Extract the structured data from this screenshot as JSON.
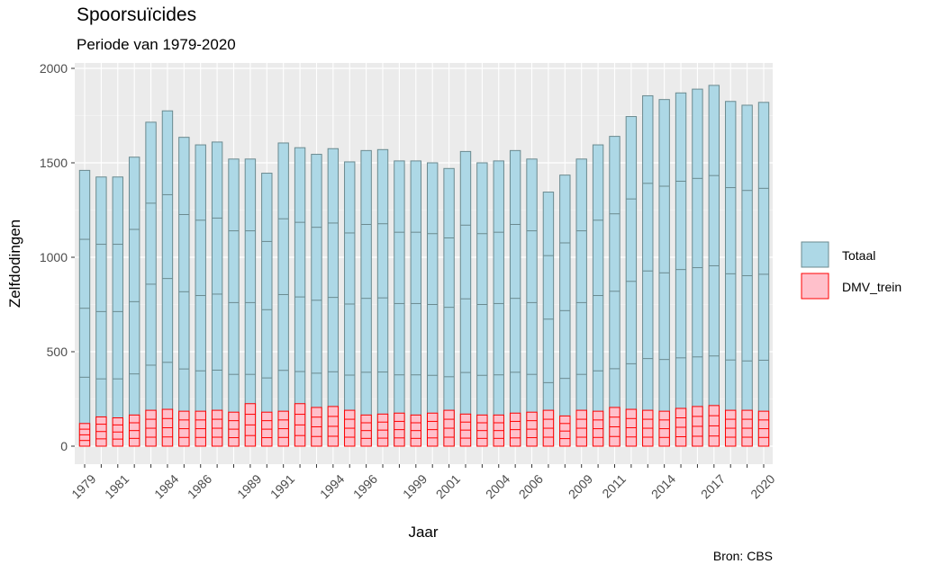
{
  "chart_data": {
    "type": "bar",
    "title": "Spoorsuïcides",
    "subtitle": "Periode van 1979-2020",
    "xlabel": "Jaar",
    "ylabel": "Zelfdodingen",
    "caption": "Bron: CBS",
    "ylim": [
      0,
      2000
    ],
    "yticks": [
      0,
      500,
      1000,
      1500,
      2000
    ],
    "xtick_labels": [
      "1979",
      "1981",
      "1984",
      "1986",
      "1989",
      "1991",
      "1994",
      "1996",
      "1999",
      "2001",
      "2004",
      "2006",
      "2009",
      "2011",
      "2014",
      "2017",
      "2020"
    ],
    "grid": true,
    "legend_position": "right",
    "x": [
      1979,
      1980,
      1981,
      1982,
      1983,
      1984,
      1985,
      1986,
      1987,
      1988,
      1989,
      1990,
      1991,
      1992,
      1993,
      1994,
      1995,
      1996,
      1997,
      1998,
      1999,
      2000,
      2001,
      2002,
      2003,
      2004,
      2005,
      2006,
      2007,
      2008,
      2009,
      2010,
      2011,
      2012,
      2013,
      2014,
      2015,
      2016,
      2017,
      2018,
      2019,
      2020
    ],
    "series": [
      {
        "name": "Totaal",
        "fill": "#ADD8E6",
        "stroke": "#6B8A8F",
        "values": [
          1460,
          1425,
          1425,
          1530,
          1715,
          1775,
          1635,
          1595,
          1610,
          1520,
          1520,
          1445,
          1605,
          1580,
          1545,
          1575,
          1505,
          1565,
          1570,
          1510,
          1510,
          1500,
          1470,
          1560,
          1500,
          1510,
          1565,
          1520,
          1345,
          1435,
          1520,
          1595,
          1640,
          1745,
          1855,
          1835,
          1870,
          1890,
          1910,
          1825,
          1805,
          1820
        ]
      },
      {
        "name": "DMV_trein",
        "fill": "#FFC0CB",
        "stroke": "#FF0000",
        "values": [
          120,
          155,
          150,
          165,
          190,
          195,
          185,
          185,
          190,
          180,
          225,
          180,
          185,
          225,
          205,
          210,
          190,
          165,
          170,
          175,
          165,
          175,
          190,
          170,
          165,
          165,
          175,
          180,
          190,
          160,
          190,
          185,
          205,
          195,
          190,
          185,
          200,
          210,
          215,
          190,
          190,
          185
        ]
      }
    ]
  }
}
